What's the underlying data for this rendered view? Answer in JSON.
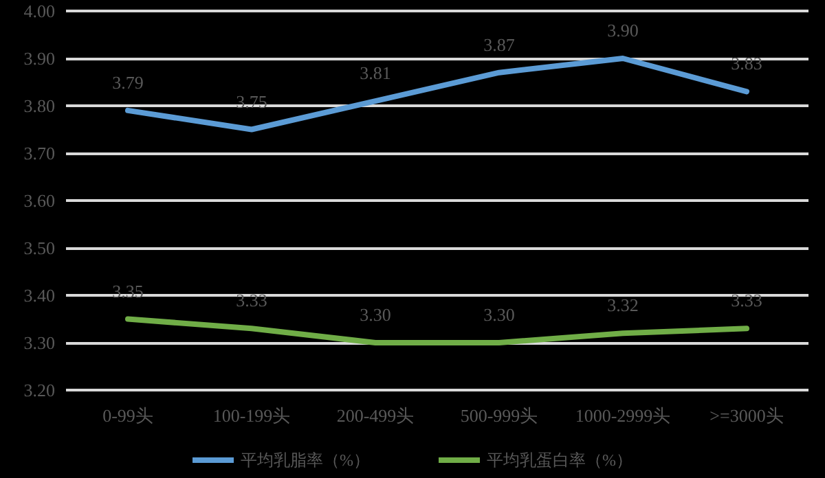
{
  "chart_data": {
    "type": "line",
    "categories": [
      "0-99头",
      "100-199头",
      "200-499头",
      "500-999头",
      "1000-2999头",
      ">=3000头"
    ],
    "series": [
      {
        "name": "平均乳脂率（%）",
        "color": "#5b9bd5",
        "values": [
          3.79,
          3.75,
          3.81,
          3.87,
          3.9,
          3.83
        ],
        "value_labels": [
          "3.79",
          "3.75",
          "3.81",
          "3.87",
          "3.90",
          "3.83"
        ]
      },
      {
        "name": "平均乳蛋白率（%）",
        "color": "#70ad47",
        "values": [
          3.35,
          3.33,
          3.3,
          3.3,
          3.32,
          3.33
        ],
        "value_labels": [
          "3.35",
          "3.33",
          "3.30",
          "3.30",
          "3.32",
          "3.33"
        ]
      }
    ],
    "ylim": [
      3.2,
      4.0
    ],
    "yticks": [
      {
        "value": 3.2,
        "label": "3.20"
      },
      {
        "value": 3.3,
        "label": "3.30"
      },
      {
        "value": 3.4,
        "label": "3.40"
      },
      {
        "value": 3.5,
        "label": "3.50"
      },
      {
        "value": 3.6,
        "label": "3.60"
      },
      {
        "value": 3.7,
        "label": "3.70"
      },
      {
        "value": 3.8,
        "label": "3.80"
      },
      {
        "value": 3.9,
        "label": "3.90"
      },
      {
        "value": 4.0,
        "label": "4.00"
      }
    ],
    "grid": "y",
    "legend": "bottom",
    "marker": "none",
    "line_style": "solid"
  }
}
